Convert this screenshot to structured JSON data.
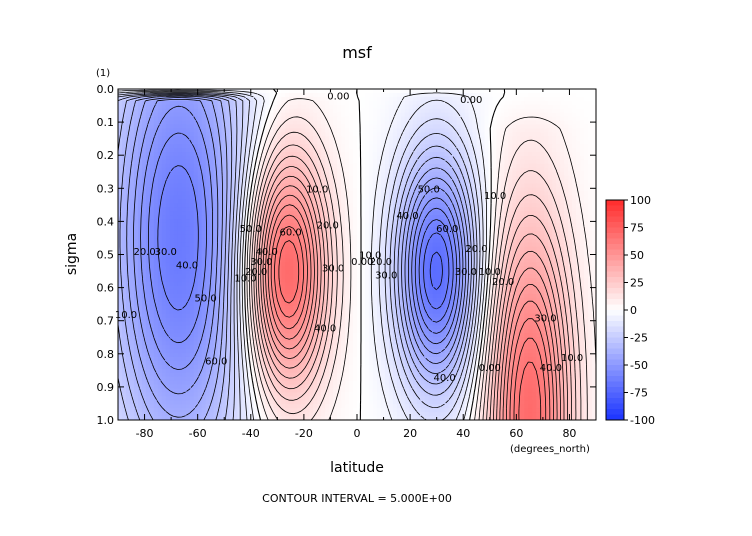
{
  "chart_data": {
    "type": "heatmap",
    "title": "msf",
    "xlabel": "latitude",
    "ylabel": "sigma",
    "x_units": "(degrees_north)",
    "y_units": "(1)",
    "xlim": [
      -90,
      90
    ],
    "ylim": [
      0.0,
      1.0
    ],
    "y_inverted": true,
    "x_ticks": [
      -80,
      -60,
      -40,
      -20,
      0,
      20,
      40,
      60,
      80
    ],
    "x_tick_labels": [
      "-80",
      "-60",
      "-40",
      "-20",
      "0",
      "20",
      "40",
      "60",
      "80"
    ],
    "y_ticks": [
      0.0,
      0.1,
      0.2,
      0.3,
      0.4,
      0.5,
      0.6,
      0.7,
      0.8,
      0.9,
      1.0
    ],
    "y_tick_labels": [
      "0.0",
      "0.1",
      "0.2",
      "0.3",
      "0.4",
      "0.5",
      "0.6",
      "0.7",
      "0.8",
      "0.9",
      "1.0"
    ],
    "grid": false,
    "footer": "CONTOUR INTERVAL = 5.000E+00",
    "colorbar": {
      "range": [
        -100,
        100
      ],
      "labels": [
        "100",
        "75",
        "50",
        "25",
        "0",
        "-25",
        "-50",
        "-75",
        "-100"
      ],
      "low_color": "#1a33ff",
      "mid_color": "#ffffff",
      "high_color": "#ff2b2b",
      "position": "right"
    },
    "cells": [
      {
        "lat": -67,
        "sigma": 0.45,
        "value": -65,
        "wlat": 20,
        "wsig": 0.55,
        "top": 0.03
      },
      {
        "lat": -27,
        "sigma": 0.55,
        "value": 78,
        "wlat": 11,
        "wsig": 0.26,
        "top": 0.03
      },
      {
        "lat": 30,
        "sigma": 0.55,
        "value": -72,
        "wlat": 11,
        "wsig": 0.26,
        "top": 0.02
      },
      {
        "lat": 65,
        "sigma": 0.98,
        "value": 70,
        "wlat": 11,
        "wsig": 0.42,
        "top": 0.12
      }
    ],
    "contour_labels": [
      {
        "text": "0.00",
        "lat": -7,
        "sigma": 0.02
      },
      {
        "text": "0.00",
        "lat": 43,
        "sigma": 0.03
      },
      {
        "text": "10.0",
        "lat": -15,
        "sigma": 0.3
      },
      {
        "text": "20.0",
        "lat": -11,
        "sigma": 0.41
      },
      {
        "text": "30.0",
        "lat": -9,
        "sigma": 0.54
      },
      {
        "text": "40.0",
        "lat": -12,
        "sigma": 0.72
      },
      {
        "text": "50.0",
        "lat": -40,
        "sigma": 0.42
      },
      {
        "text": "60.0",
        "lat": -25,
        "sigma": 0.43
      },
      {
        "text": "40.0",
        "lat": -34,
        "sigma": 0.49
      },
      {
        "text": "30.0",
        "lat": -36,
        "sigma": 0.52
      },
      {
        "text": "20.0",
        "lat": -38,
        "sigma": 0.55
      },
      {
        "text": "10.0",
        "lat": -42,
        "sigma": 0.57
      },
      {
        "text": "0.00",
        "lat": 2,
        "sigma": 0.52
      },
      {
        "text": "10.0",
        "lat": 5,
        "sigma": 0.5
      },
      {
        "text": "20.0",
        "lat": 9,
        "sigma": 0.52
      },
      {
        "text": "30.0",
        "lat": 11,
        "sigma": 0.56
      },
      {
        "text": "40.0",
        "lat": 19,
        "sigma": 0.38
      },
      {
        "text": "50.0",
        "lat": 27,
        "sigma": 0.3
      },
      {
        "text": "60.0",
        "lat": 34,
        "sigma": 0.42
      },
      {
        "text": "30.0",
        "lat": 41,
        "sigma": 0.55
      },
      {
        "text": "20.0",
        "lat": 45,
        "sigma": 0.48
      },
      {
        "text": "10.0",
        "lat": 50,
        "sigma": 0.55
      },
      {
        "text": "0.00",
        "lat": 50,
        "sigma": 0.84
      },
      {
        "text": "40.0",
        "lat": 33,
        "sigma": 0.87
      },
      {
        "text": "10.0",
        "lat": 52,
        "sigma": 0.32
      },
      {
        "text": "20.0",
        "lat": 55,
        "sigma": 0.58
      },
      {
        "text": "30.0",
        "lat": 71,
        "sigma": 0.69
      },
      {
        "text": "40.0",
        "lat": 73,
        "sigma": 0.84
      },
      {
        "text": "10.0",
        "lat": 81,
        "sigma": 0.81
      },
      {
        "text": "20.0",
        "lat": -80,
        "sigma": 0.49
      },
      {
        "text": "30.0",
        "lat": -72,
        "sigma": 0.49
      },
      {
        "text": "40.0",
        "lat": -64,
        "sigma": 0.53
      },
      {
        "text": "50.0",
        "lat": -57,
        "sigma": 0.63
      },
      {
        "text": "60.0",
        "lat": -53,
        "sigma": 0.82
      },
      {
        "text": "10.0",
        "lat": -87,
        "sigma": 0.68
      }
    ]
  }
}
